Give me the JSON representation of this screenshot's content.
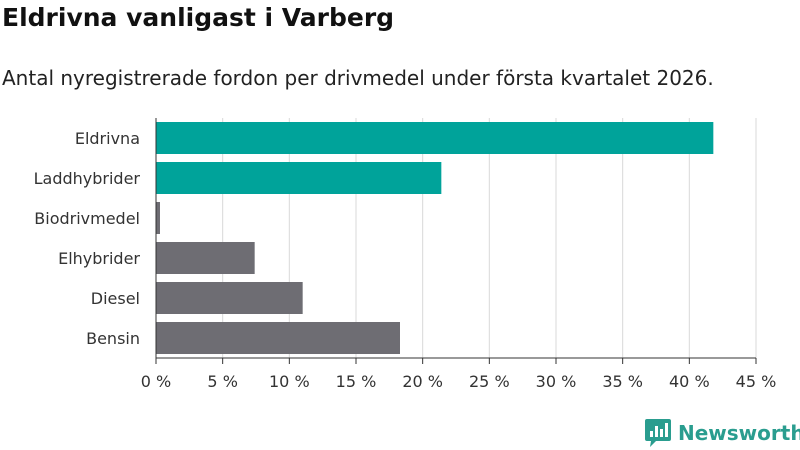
{
  "header": {
    "title": "Eldrivna vanligast i Varberg",
    "subtitle": "Antal nyregistrerade fordon per drivmedel under första kvartalet 2026."
  },
  "chart_data": {
    "type": "bar",
    "orientation": "horizontal",
    "title": "Eldrivna vanligast i Varberg",
    "subtitle": "Antal nyregistrerade fordon per drivmedel under första kvartalet 2026.",
    "xlabel": "",
    "ylabel": "",
    "categories": [
      "Eldrivna",
      "Laddhybrider",
      "Biodrivmedel",
      "Elhybrider",
      "Diesel",
      "Bensin"
    ],
    "values": [
      41.8,
      21.4,
      0.3,
      7.4,
      11.0,
      18.3
    ],
    "bar_colors": [
      "#00a39a",
      "#00a39a",
      "#6e6d73",
      "#6e6d73",
      "#6e6d73",
      "#6e6d73"
    ],
    "xlim": [
      0,
      45
    ],
    "ticks": [
      0,
      5,
      10,
      15,
      20,
      25,
      30,
      35,
      40,
      45
    ],
    "tick_labels": [
      "0 %",
      "5 %",
      "10 %",
      "15 %",
      "20 %",
      "25 %",
      "30 %",
      "35 %",
      "40 %",
      "45 %"
    ],
    "grid": true,
    "legend": "none"
  },
  "colors": {
    "accent": "#00a39a",
    "neutral": "#6e6d73",
    "grid": "#d9d9d9",
    "axis": "#333333",
    "brand": "#2a9d8f"
  },
  "branding": {
    "logo_text": "Newsworthy",
    "logo_icon": "newsworthy-chart-icon"
  }
}
